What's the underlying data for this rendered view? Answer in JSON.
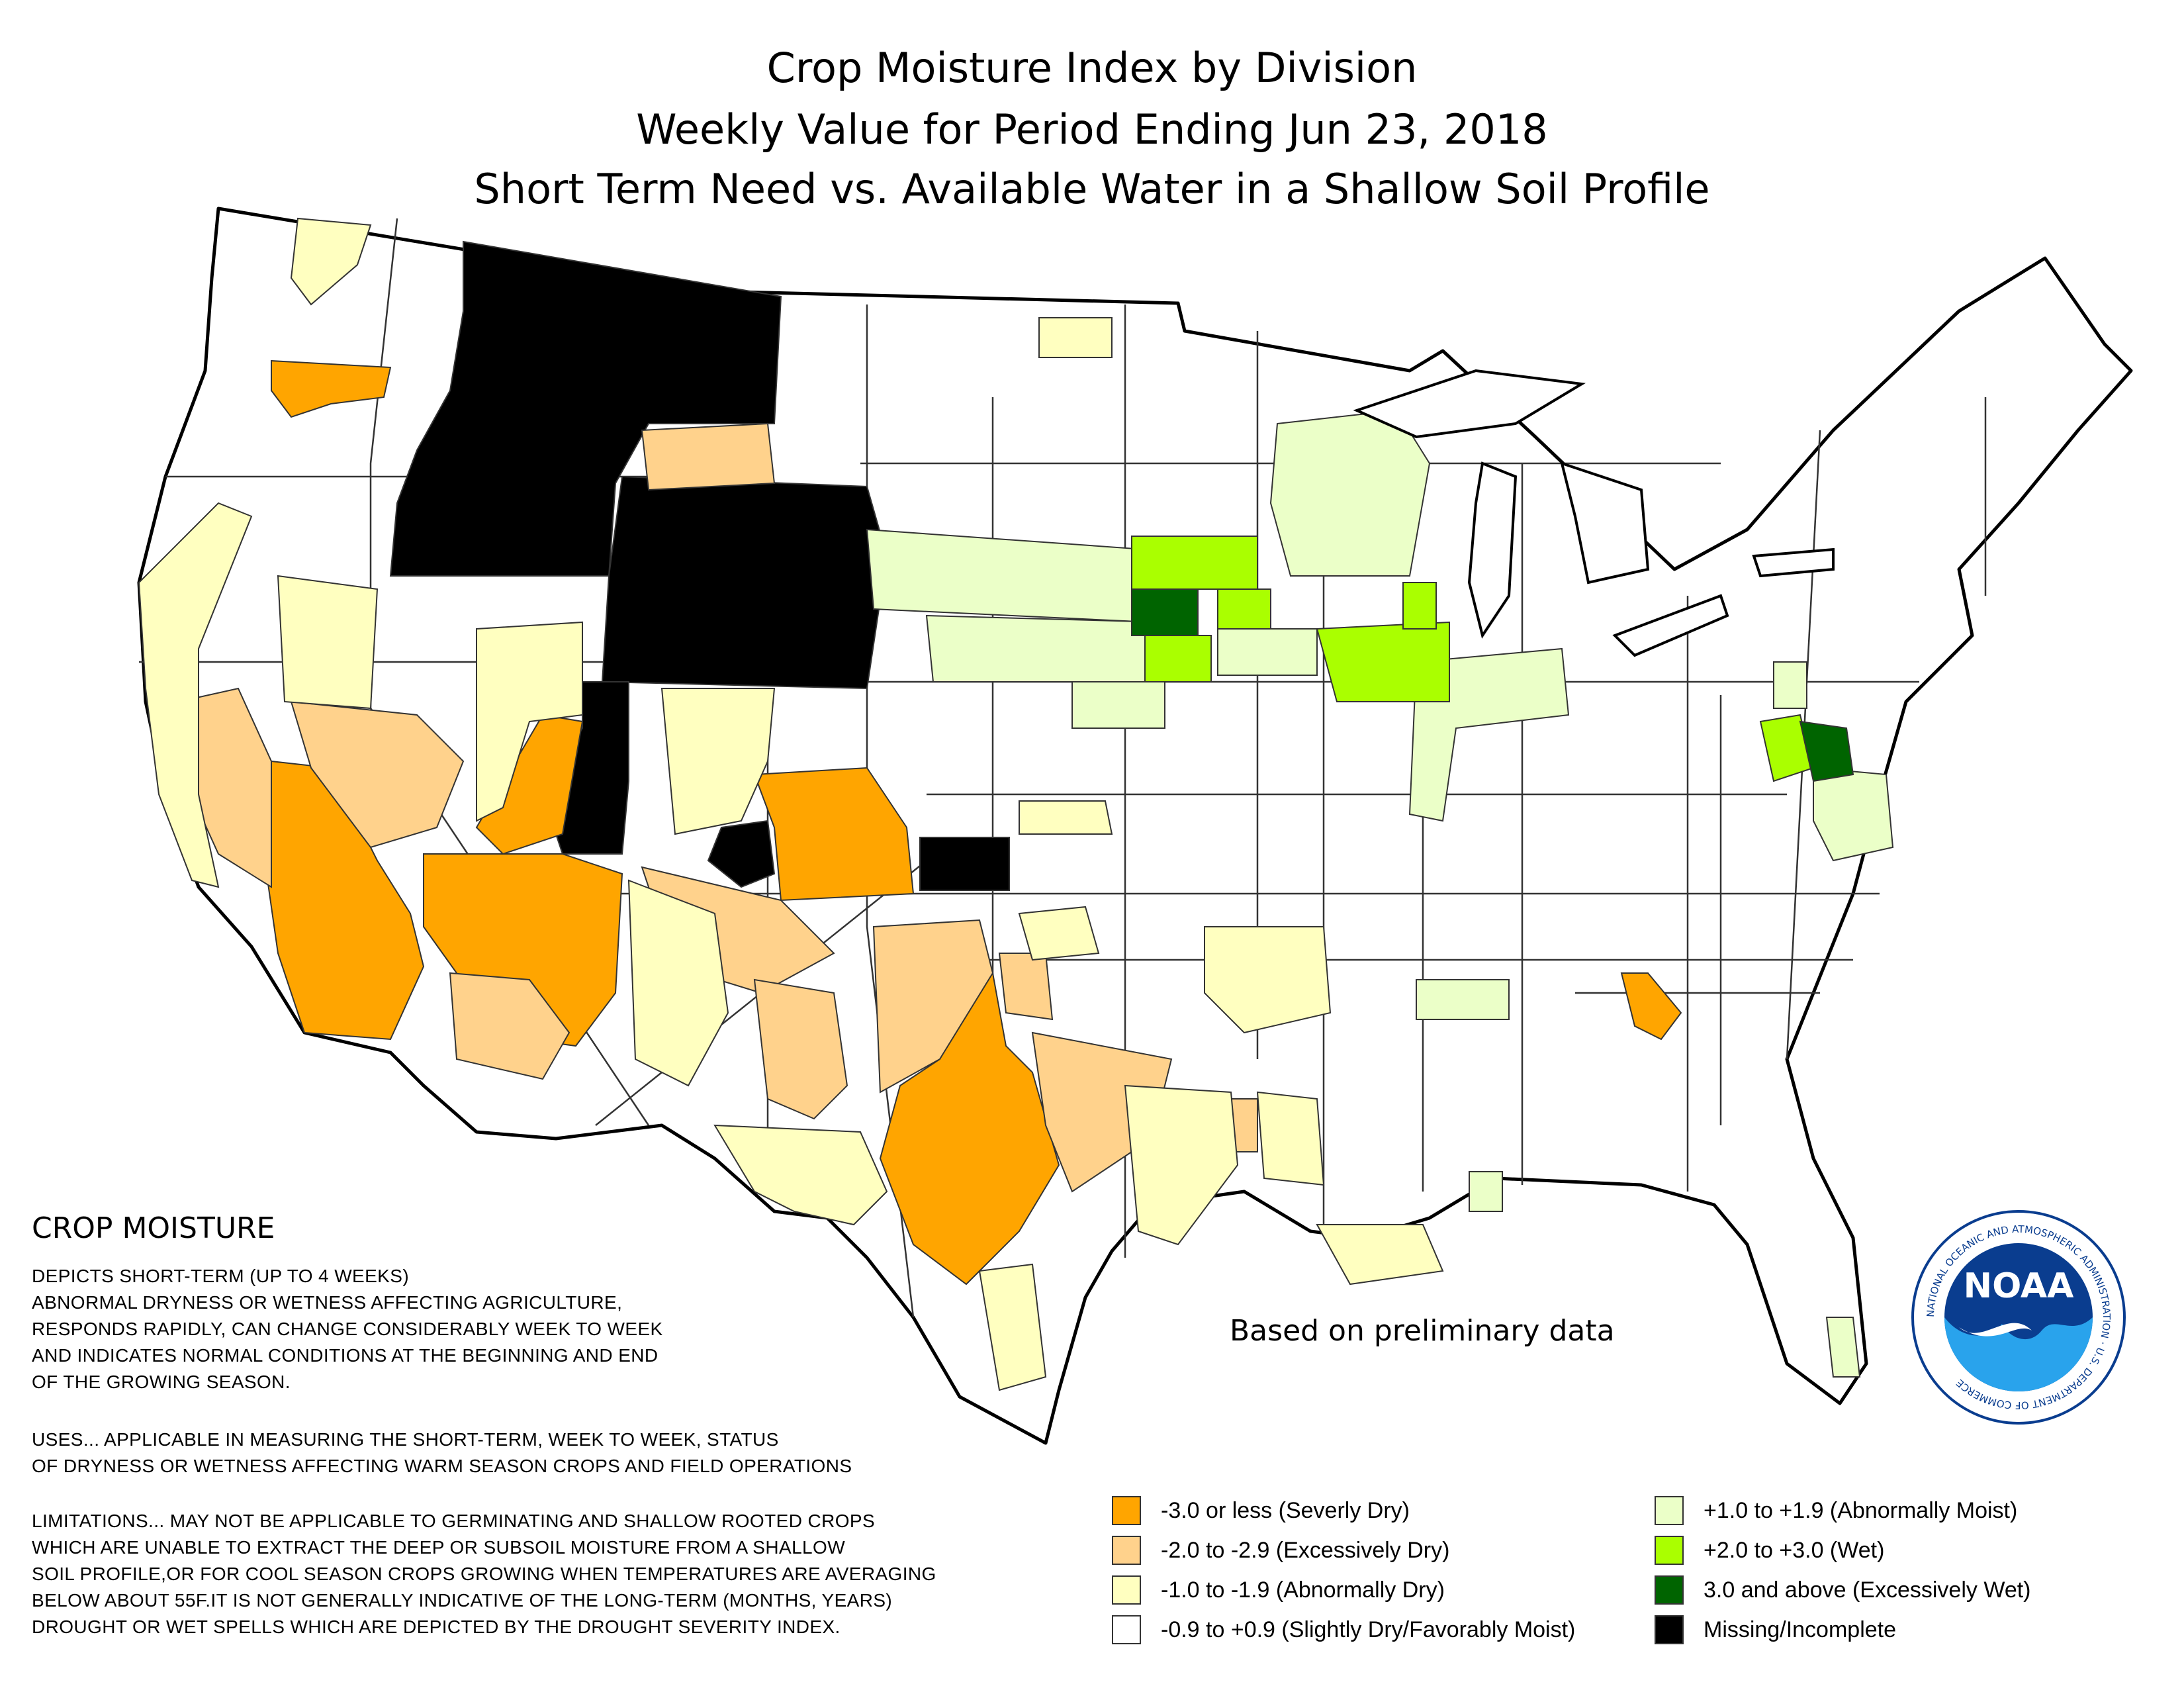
{
  "title": {
    "line1": "Crop Moisture Index by Division",
    "line2": "Weekly Value for Period Ending Jun 23, 2018",
    "line3": "Short Term Need vs. Available Water in a Shallow Soil Profile"
  },
  "description": {
    "heading": "CROP MOISTURE",
    "depicts": "DEPICTS SHORT-TERM (UP TO 4 WEEKS)\nABNORMAL DRYNESS OR WETNESS AFFECTING AGRICULTURE,\nRESPONDS RAPIDLY, CAN CHANGE CONSIDERABLY WEEK TO WEEK\nAND INDICATES NORMAL CONDITIONS AT THE BEGINNING AND END\nOF THE GROWING SEASON.",
    "uses": "USES... APPLICABLE IN MEASURING THE SHORT-TERM, WEEK TO WEEK, STATUS\nOF DRYNESS OR WETNESS AFFECTING WARM SEASON CROPS AND FIELD OPERATIONS",
    "limitations": "LIMITATIONS... MAY NOT BE APPLICABLE TO GERMINATING AND SHALLOW ROOTED CROPS\nWHICH ARE UNABLE TO EXTRACT THE DEEP OR SUBSOIL MOISTURE FROM A SHALLOW\nSOIL PROFILE,OR FOR COOL SEASON CROPS GROWING WHEN TEMPERATURES ARE AVERAGING\nBELOW ABOUT 55F.IT IS NOT GENERALLY INDICATIVE OF THE LONG-TERM (MONTHS, YEARS)\nDROUGHT OR WET SPELLS WHICH ARE DEPICTED BY THE DROUGHT SEVERITY INDEX."
  },
  "note": "Based on preliminary data",
  "legend": [
    {
      "label": "-3.0 or less (Severly Dry)",
      "color": "#FFA500"
    },
    {
      "label": "-2.0 to -2.9 (Excessively Dry)",
      "color": "#FFD28C"
    },
    {
      "label": "-1.0 to -1.9 (Abnormally Dry)",
      "color": "#FFFFC0"
    },
    {
      "label": "-0.9 to +0.9 (Slightly Dry/Favorably Moist)",
      "color": "#FFFFFF"
    },
    {
      "label": "+1.0 to +1.9 (Abnormally Moist)",
      "color": "#EBFFC8"
    },
    {
      "label": "+2.0 to +3.0 (Wet)",
      "color": "#AAFF00"
    },
    {
      "label": "3.0 and above (Excessively Wet)",
      "color": "#006400"
    },
    {
      "label": "Missing/Incomplete",
      "color": "#000000"
    }
  ],
  "logo": {
    "text": "NOAA",
    "ring": "NATIONAL OCEANIC AND ATMOSPHERIC ADMINISTRATION · U.S. DEPARTMENT OF COMMERCE"
  }
}
